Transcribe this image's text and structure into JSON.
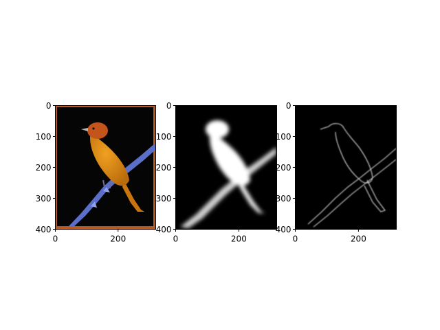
{
  "figure": {
    "background": "#ffffff",
    "panels": [
      {
        "id": "original",
        "content": "color photograph of an orange tanager perched on a blue branch, framed by an orange border on a black background",
        "x_ticks": [
          "0",
          "200"
        ],
        "y_ticks": [
          "0",
          "100",
          "200",
          "300",
          "400"
        ],
        "xlim": [
          0,
          320
        ],
        "ylim": [
          400,
          0
        ],
        "colors": {
          "bird": "#d9820f",
          "head": "#c2541c",
          "branch": "#5b6fc9",
          "frame": "#b85a1f",
          "background": "#050505"
        }
      },
      {
        "id": "saliency-mask",
        "content": "grayscale saliency map — bright white bird and branch silhouette on black",
        "x_ticks": [
          "0",
          "200"
        ],
        "y_ticks": [
          "0",
          "100",
          "200",
          "300",
          "400"
        ],
        "xlim": [
          0,
          320
        ],
        "ylim": [
          400,
          0
        ]
      },
      {
        "id": "edge-map",
        "content": "edge map — thin white contour of the bird and branch on black",
        "x_ticks": [
          "0",
          "200"
        ],
        "y_ticks": [
          "0",
          "100",
          "200",
          "300",
          "400"
        ],
        "xlim": [
          0,
          320
        ],
        "ylim": [
          400,
          0
        ]
      }
    ]
  }
}
